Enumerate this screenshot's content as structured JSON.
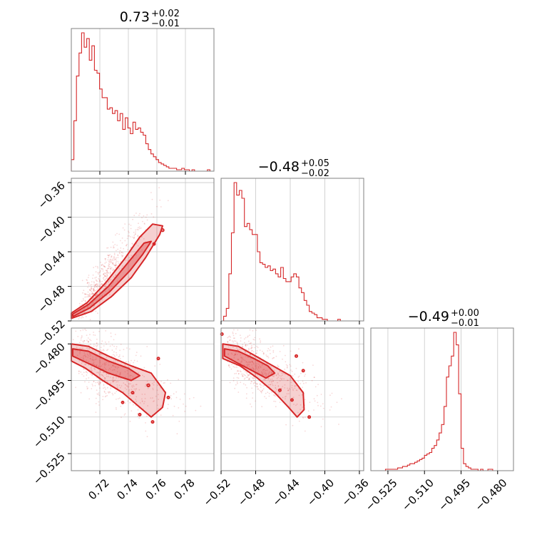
{
  "colors": {
    "series": "#d62728",
    "frame": "#808080",
    "grid": "#c8c8c8"
  },
  "chart_data": {
    "type": "corner",
    "grid": true,
    "parameters": [
      {
        "range": [
          0.7,
          0.8
        ],
        "ticks": [
          0.72,
          0.74,
          0.76,
          0.78
        ],
        "tick_labels": [
          "0.72",
          "0.74",
          "0.76",
          "0.78"
        ]
      },
      {
        "range": [
          -0.52,
          -0.355
        ],
        "ticks": [
          -0.52,
          -0.48,
          -0.44,
          -0.4,
          -0.36
        ],
        "tick_labels": [
          "−0.52",
          "−0.48",
          "−0.44",
          "−0.40",
          "−0.36"
        ]
      },
      {
        "range": [
          -0.532,
          -0.4735
        ],
        "ticks": [
          -0.525,
          -0.51,
          -0.495,
          -0.48
        ],
        "tick_labels": [
          "−0.525",
          "−0.510",
          "−0.495",
          "−0.480"
        ]
      }
    ],
    "titles": [
      {
        "value": "0.73",
        "plus": "+0.02",
        "minus": "−0.01"
      },
      {
        "value": "−0.48",
        "plus": "+0.05",
        "minus": "−0.02"
      },
      {
        "value": "−0.49",
        "plus": "+0.00",
        "minus": "−0.01"
      }
    ],
    "histograms": [
      {
        "bins": [
          0.7,
          0.7018,
          0.7036,
          0.7054,
          0.7072,
          0.709,
          0.7108,
          0.7126,
          0.7144,
          0.7162,
          0.718,
          0.7198,
          0.7216,
          0.7234,
          0.7252,
          0.727,
          0.7288,
          0.7306,
          0.7324,
          0.7342,
          0.736,
          0.7378,
          0.7396,
          0.7414,
          0.7432,
          0.745,
          0.7468,
          0.7486,
          0.7504,
          0.7522,
          0.754,
          0.7558,
          0.7576,
          0.7594,
          0.7612,
          0.763,
          0.7648,
          0.7666,
          0.7684,
          0.7702,
          0.772,
          0.7738,
          0.7756,
          0.7774,
          0.7792,
          0.781,
          0.7828,
          0.7846,
          0.7864,
          0.7882,
          0.79,
          0.7918,
          0.7936,
          0.7954,
          0.7972,
          0.8
        ],
        "counts": [
          0.08,
          0.35,
          0.66,
          0.82,
          0.96,
          0.86,
          0.92,
          0.77,
          0.87,
          0.7,
          0.68,
          0.57,
          0.51,
          0.51,
          0.43,
          0.44,
          0.4,
          0.42,
          0.35,
          0.4,
          0.29,
          0.37,
          0.3,
          0.26,
          0.34,
          0.29,
          0.3,
          0.27,
          0.25,
          0.19,
          0.15,
          0.12,
          0.1,
          0.08,
          0.06,
          0.05,
          0.04,
          0.03,
          0.02,
          0.02,
          0.02,
          0.01,
          0.01,
          0.02,
          0.01,
          0.01,
          0.0,
          0.01,
          0.0,
          0.0,
          0.0,
          0.0,
          0.0,
          0.01,
          0.0
        ]
      },
      {
        "bins": [
          -0.52,
          -0.517,
          -0.514,
          -0.511,
          -0.508,
          -0.505,
          -0.502,
          -0.499,
          -0.496,
          -0.493,
          -0.49,
          -0.487,
          -0.484,
          -0.481,
          -0.478,
          -0.475,
          -0.472,
          -0.469,
          -0.466,
          -0.463,
          -0.46,
          -0.457,
          -0.454,
          -0.451,
          -0.448,
          -0.445,
          -0.442,
          -0.439,
          -0.436,
          -0.433,
          -0.43,
          -0.427,
          -0.424,
          -0.421,
          -0.418,
          -0.415,
          -0.412,
          -0.409,
          -0.406,
          -0.403,
          -0.4,
          -0.397,
          -0.394,
          -0.391,
          -0.388,
          -0.385,
          -0.382,
          -0.379,
          -0.376,
          -0.373,
          -0.37,
          -0.367,
          -0.364,
          -0.361,
          -0.358,
          -0.355
        ],
        "counts": [
          0.0,
          0.03,
          0.08,
          0.3,
          0.56,
          0.88,
          0.8,
          0.83,
          0.78,
          0.6,
          0.62,
          0.58,
          0.55,
          0.55,
          0.44,
          0.37,
          0.36,
          0.34,
          0.35,
          0.32,
          0.33,
          0.3,
          0.28,
          0.34,
          0.27,
          0.25,
          0.25,
          0.28,
          0.3,
          0.28,
          0.21,
          0.18,
          0.13,
          0.1,
          0.06,
          0.05,
          0.04,
          0.02,
          0.02,
          0.01,
          0.01,
          0.0,
          0.0,
          0.0,
          0.0,
          0.01,
          0.0,
          0.0,
          0.0,
          0.0,
          0.0,
          0.0,
          0.0,
          0.0,
          0.0
        ]
      },
      {
        "bins": [
          -0.532,
          -0.531,
          -0.53,
          -0.529,
          -0.528,
          -0.527,
          -0.526,
          -0.525,
          -0.524,
          -0.523,
          -0.522,
          -0.521,
          -0.52,
          -0.519,
          -0.518,
          -0.517,
          -0.516,
          -0.515,
          -0.514,
          -0.513,
          -0.512,
          -0.511,
          -0.51,
          -0.509,
          -0.508,
          -0.507,
          -0.506,
          -0.505,
          -0.504,
          -0.503,
          -0.502,
          -0.501,
          -0.5,
          -0.499,
          -0.498,
          -0.497,
          -0.496,
          -0.495,
          -0.494,
          -0.493,
          -0.492,
          -0.491,
          -0.49,
          -0.489,
          -0.488,
          -0.487,
          -0.486,
          -0.485,
          -0.484,
          -0.483,
          -0.482,
          -0.481,
          -0.48,
          -0.479,
          -0.478,
          -0.477,
          -0.476,
          -0.475,
          -0.4735
        ],
        "counts": [
          0.0,
          0.0,
          0.0,
          0.0,
          0.0,
          0.0,
          0.01,
          0.01,
          0.01,
          0.01,
          0.01,
          0.02,
          0.02,
          0.03,
          0.03,
          0.04,
          0.05,
          0.05,
          0.06,
          0.07,
          0.08,
          0.09,
          0.11,
          0.12,
          0.13,
          0.16,
          0.18,
          0.22,
          0.27,
          0.33,
          0.46,
          0.67,
          0.75,
          0.82,
          0.99,
          0.9,
          0.55,
          0.16,
          0.05,
          0.03,
          0.02,
          0.01,
          0.01,
          0.01,
          0.0,
          0.01,
          0.0,
          0.0,
          0.01,
          0.01,
          0.0,
          0.0,
          0.0,
          0.0,
          0.0,
          0.0,
          0.0,
          0.0
        ]
      }
    ],
    "pairs": [
      {
        "x_param": 0,
        "y_param": 1,
        "correlation": "strong-positive"
      },
      {
        "x_param": 0,
        "y_param": 2,
        "correlation": "negative"
      },
      {
        "x_param": 1,
        "y_param": 2,
        "correlation": "negative"
      }
    ]
  }
}
